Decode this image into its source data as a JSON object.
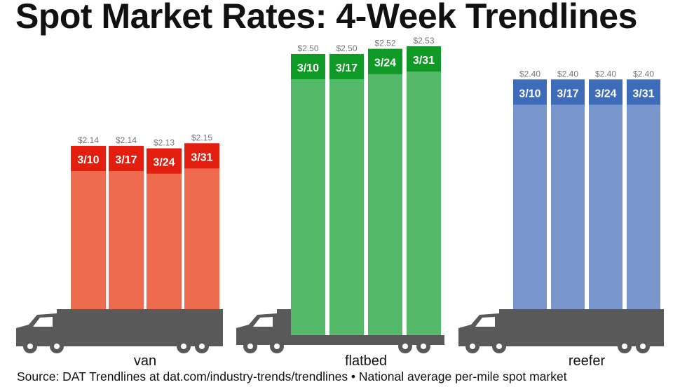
{
  "title": "Spot Market Rates: 4-Week Trendlines",
  "source": "Source: DAT Trendlines at dat.com/industry-trends/trendlines • National average per-mile spot market",
  "chart_data": {
    "type": "bar",
    "title": "Spot Market Rates: 4-Week Trendlines",
    "categories": [
      "3/10",
      "3/17",
      "3/24",
      "3/31"
    ],
    "series": [
      {
        "name": "van",
        "values": [
          2.14,
          2.14,
          2.13,
          2.15
        ],
        "labels": [
          "$2.14",
          "$2.14",
          "$2.13",
          "$2.15"
        ],
        "bar_color": "#ee6b50",
        "cap_color": "#e31e0f"
      },
      {
        "name": "flatbed",
        "values": [
          2.5,
          2.5,
          2.52,
          2.53
        ],
        "labels": [
          "$2.50",
          "$2.50",
          "$2.52",
          "$2.53"
        ],
        "bar_color": "#55b96a",
        "cap_color": "#0f9a26"
      },
      {
        "name": "reefer",
        "values": [
          2.4,
          2.4,
          2.4,
          2.4
        ],
        "labels": [
          "$2.40",
          "$2.40",
          "$2.40",
          "$2.40"
        ],
        "bar_color": "#7896cb",
        "cap_color": "#3f6cb8"
      }
    ],
    "truck_color": "#595959",
    "label_color": "#777777"
  }
}
